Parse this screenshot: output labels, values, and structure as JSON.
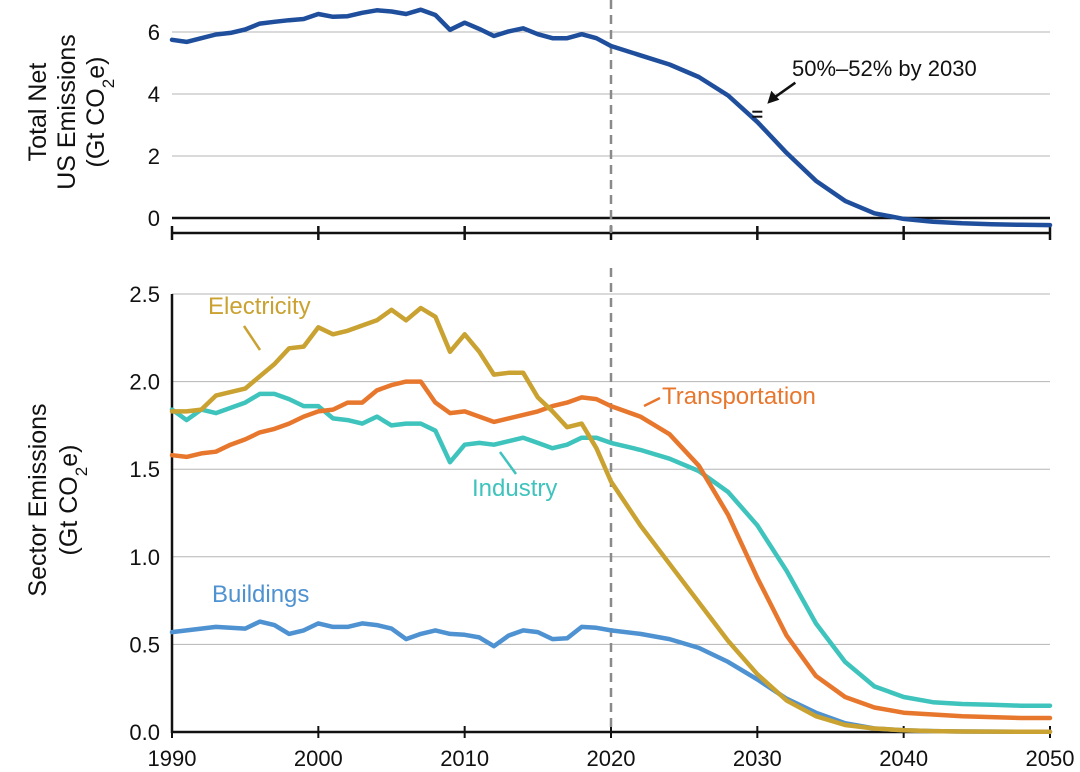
{
  "chart_data": [
    {
      "type": "line",
      "panel": "top",
      "ylabel_lines": [
        "Total Net",
        "US Emissions",
        "(Gt CO",
        "2",
        "e)"
      ],
      "ylim": [
        -0.5,
        7
      ],
      "yticks": [
        0,
        2,
        4,
        6
      ],
      "ytick_labels": [
        "0",
        "2",
        "4",
        "6"
      ],
      "xlim": [
        1990,
        2050
      ],
      "xticks": [
        1990,
        2000,
        2010,
        2020,
        2030,
        2040,
        2050
      ],
      "grid": true,
      "reference_line": {
        "x": 2020,
        "style": "dashed"
      },
      "annotation": {
        "text": "50%–52% by 2030",
        "x": 2030,
        "y": 3.3
      },
      "series": [
        {
          "color": "#1f4f9c",
          "x": [
            1990,
            1991,
            1992,
            1993,
            1994,
            1995,
            1996,
            1997,
            1998,
            1999,
            2000,
            2001,
            2002,
            2003,
            2004,
            2005,
            2006,
            2007,
            2008,
            2009,
            2010,
            2011,
            2012,
            2013,
            2014,
            2015,
            2016,
            2017,
            2018,
            2019,
            2020,
            2022,
            2024,
            2026,
            2028,
            2030,
            2032,
            2034,
            2036,
            2038,
            2040,
            2042,
            2044,
            2046,
            2048,
            2050
          ],
          "values": [
            5.75,
            5.68,
            5.8,
            5.92,
            5.97,
            6.08,
            6.27,
            6.33,
            6.38,
            6.42,
            6.58,
            6.49,
            6.51,
            6.62,
            6.7,
            6.66,
            6.58,
            6.72,
            6.55,
            6.07,
            6.3,
            6.1,
            5.87,
            6.02,
            6.12,
            5.93,
            5.8,
            5.8,
            5.93,
            5.8,
            5.55,
            5.25,
            4.95,
            4.55,
            3.95,
            3.1,
            2.1,
            1.2,
            0.55,
            0.15,
            -0.03,
            -0.12,
            -0.17,
            -0.2,
            -0.22,
            -0.23
          ]
        }
      ]
    },
    {
      "type": "line",
      "panel": "bottom",
      "ylabel_lines": [
        "Sector Emissions",
        "(Gt CO",
        "2",
        "e)"
      ],
      "ylim": [
        0,
        2.5
      ],
      "yticks": [
        0,
        0.5,
        1.0,
        1.5,
        2.0,
        2.5
      ],
      "ytick_labels": [
        "0.0",
        "0.5",
        "1.0",
        "1.5",
        "2.0",
        "2.5"
      ],
      "xlim": [
        1990,
        2050
      ],
      "xticks": [
        1990,
        2000,
        2010,
        2020,
        2030,
        2040,
        2050
      ],
      "xtick_labels": [
        "1990",
        "2000",
        "2010",
        "2020",
        "2030",
        "2040",
        "2050"
      ],
      "grid": true,
      "reference_line": {
        "x": 2020,
        "style": "dashed"
      },
      "series": [
        {
          "name": "Electricity",
          "color": "#c9a231",
          "x": [
            1990,
            1991,
            1992,
            1993,
            1994,
            1995,
            1996,
            1997,
            1998,
            1999,
            2000,
            2001,
            2002,
            2003,
            2004,
            2005,
            2006,
            2007,
            2008,
            2009,
            2010,
            2011,
            2012,
            2013,
            2014,
            2015,
            2016,
            2017,
            2018,
            2019,
            2020,
            2022,
            2024,
            2026,
            2028,
            2030,
            2032,
            2034,
            2036,
            2038,
            2040,
            2042,
            2044,
            2046,
            2048,
            2050
          ],
          "values": [
            1.83,
            1.83,
            1.84,
            1.92,
            1.94,
            1.96,
            2.03,
            2.1,
            2.19,
            2.2,
            2.31,
            2.27,
            2.29,
            2.32,
            2.35,
            2.41,
            2.35,
            2.42,
            2.37,
            2.17,
            2.27,
            2.17,
            2.04,
            2.05,
            2.05,
            1.91,
            1.83,
            1.74,
            1.76,
            1.62,
            1.43,
            1.18,
            0.96,
            0.74,
            0.52,
            0.33,
            0.18,
            0.09,
            0.04,
            0.02,
            0.01,
            0.005,
            0.003,
            0.002,
            0.001,
            0.001
          ]
        },
        {
          "name": "Transportation",
          "color": "#e8772e",
          "x": [
            1990,
            1991,
            1992,
            1993,
            1994,
            1995,
            1996,
            1997,
            1998,
            1999,
            2000,
            2001,
            2002,
            2003,
            2004,
            2005,
            2006,
            2007,
            2008,
            2009,
            2010,
            2011,
            2012,
            2013,
            2014,
            2015,
            2016,
            2017,
            2018,
            2019,
            2020,
            2022,
            2024,
            2026,
            2028,
            2030,
            2032,
            2034,
            2036,
            2038,
            2040,
            2042,
            2044,
            2046,
            2048,
            2050
          ],
          "values": [
            1.58,
            1.57,
            1.59,
            1.6,
            1.64,
            1.67,
            1.71,
            1.73,
            1.76,
            1.8,
            1.83,
            1.84,
            1.88,
            1.88,
            1.95,
            1.98,
            2.0,
            2.0,
            1.88,
            1.82,
            1.83,
            1.8,
            1.77,
            1.79,
            1.81,
            1.83,
            1.86,
            1.88,
            1.91,
            1.9,
            1.86,
            1.8,
            1.7,
            1.52,
            1.24,
            0.88,
            0.55,
            0.32,
            0.2,
            0.14,
            0.11,
            0.1,
            0.09,
            0.085,
            0.08,
            0.08
          ]
        },
        {
          "name": "Industry",
          "color": "#3ec3bd",
          "x": [
            1990,
            1991,
            1992,
            1993,
            1994,
            1995,
            1996,
            1997,
            1998,
            1999,
            2000,
            2001,
            2002,
            2003,
            2004,
            2005,
            2006,
            2007,
            2008,
            2009,
            2010,
            2011,
            2012,
            2013,
            2014,
            2015,
            2016,
            2017,
            2018,
            2019,
            2020,
            2022,
            2024,
            2026,
            2028,
            2030,
            2032,
            2034,
            2036,
            2038,
            2040,
            2042,
            2044,
            2046,
            2048,
            2050
          ],
          "values": [
            1.84,
            1.78,
            1.84,
            1.82,
            1.85,
            1.88,
            1.93,
            1.93,
            1.9,
            1.86,
            1.86,
            1.79,
            1.78,
            1.76,
            1.8,
            1.75,
            1.76,
            1.76,
            1.72,
            1.54,
            1.64,
            1.65,
            1.64,
            1.66,
            1.68,
            1.65,
            1.62,
            1.64,
            1.68,
            1.68,
            1.65,
            1.61,
            1.56,
            1.49,
            1.37,
            1.18,
            0.92,
            0.62,
            0.4,
            0.26,
            0.2,
            0.17,
            0.16,
            0.155,
            0.15,
            0.15
          ]
        },
        {
          "name": "Buildings",
          "color": "#4f92d1",
          "x": [
            1990,
            1991,
            1992,
            1993,
            1994,
            1995,
            1996,
            1997,
            1998,
            1999,
            2000,
            2001,
            2002,
            2003,
            2004,
            2005,
            2006,
            2007,
            2008,
            2009,
            2010,
            2011,
            2012,
            2013,
            2014,
            2015,
            2016,
            2017,
            2018,
            2019,
            2020,
            2022,
            2024,
            2026,
            2028,
            2030,
            2032,
            2034,
            2036,
            2038,
            2040,
            2042,
            2044,
            2046,
            2048,
            2050
          ],
          "values": [
            0.57,
            0.58,
            0.59,
            0.6,
            0.595,
            0.59,
            0.63,
            0.61,
            0.56,
            0.58,
            0.62,
            0.6,
            0.6,
            0.62,
            0.61,
            0.59,
            0.53,
            0.56,
            0.58,
            0.56,
            0.555,
            0.54,
            0.49,
            0.55,
            0.58,
            0.57,
            0.53,
            0.535,
            0.6,
            0.595,
            0.58,
            0.56,
            0.53,
            0.48,
            0.4,
            0.3,
            0.19,
            0.11,
            0.05,
            0.02,
            0.01,
            0.005,
            0.003,
            0.002,
            0.001,
            0.001
          ]
        }
      ]
    }
  ]
}
